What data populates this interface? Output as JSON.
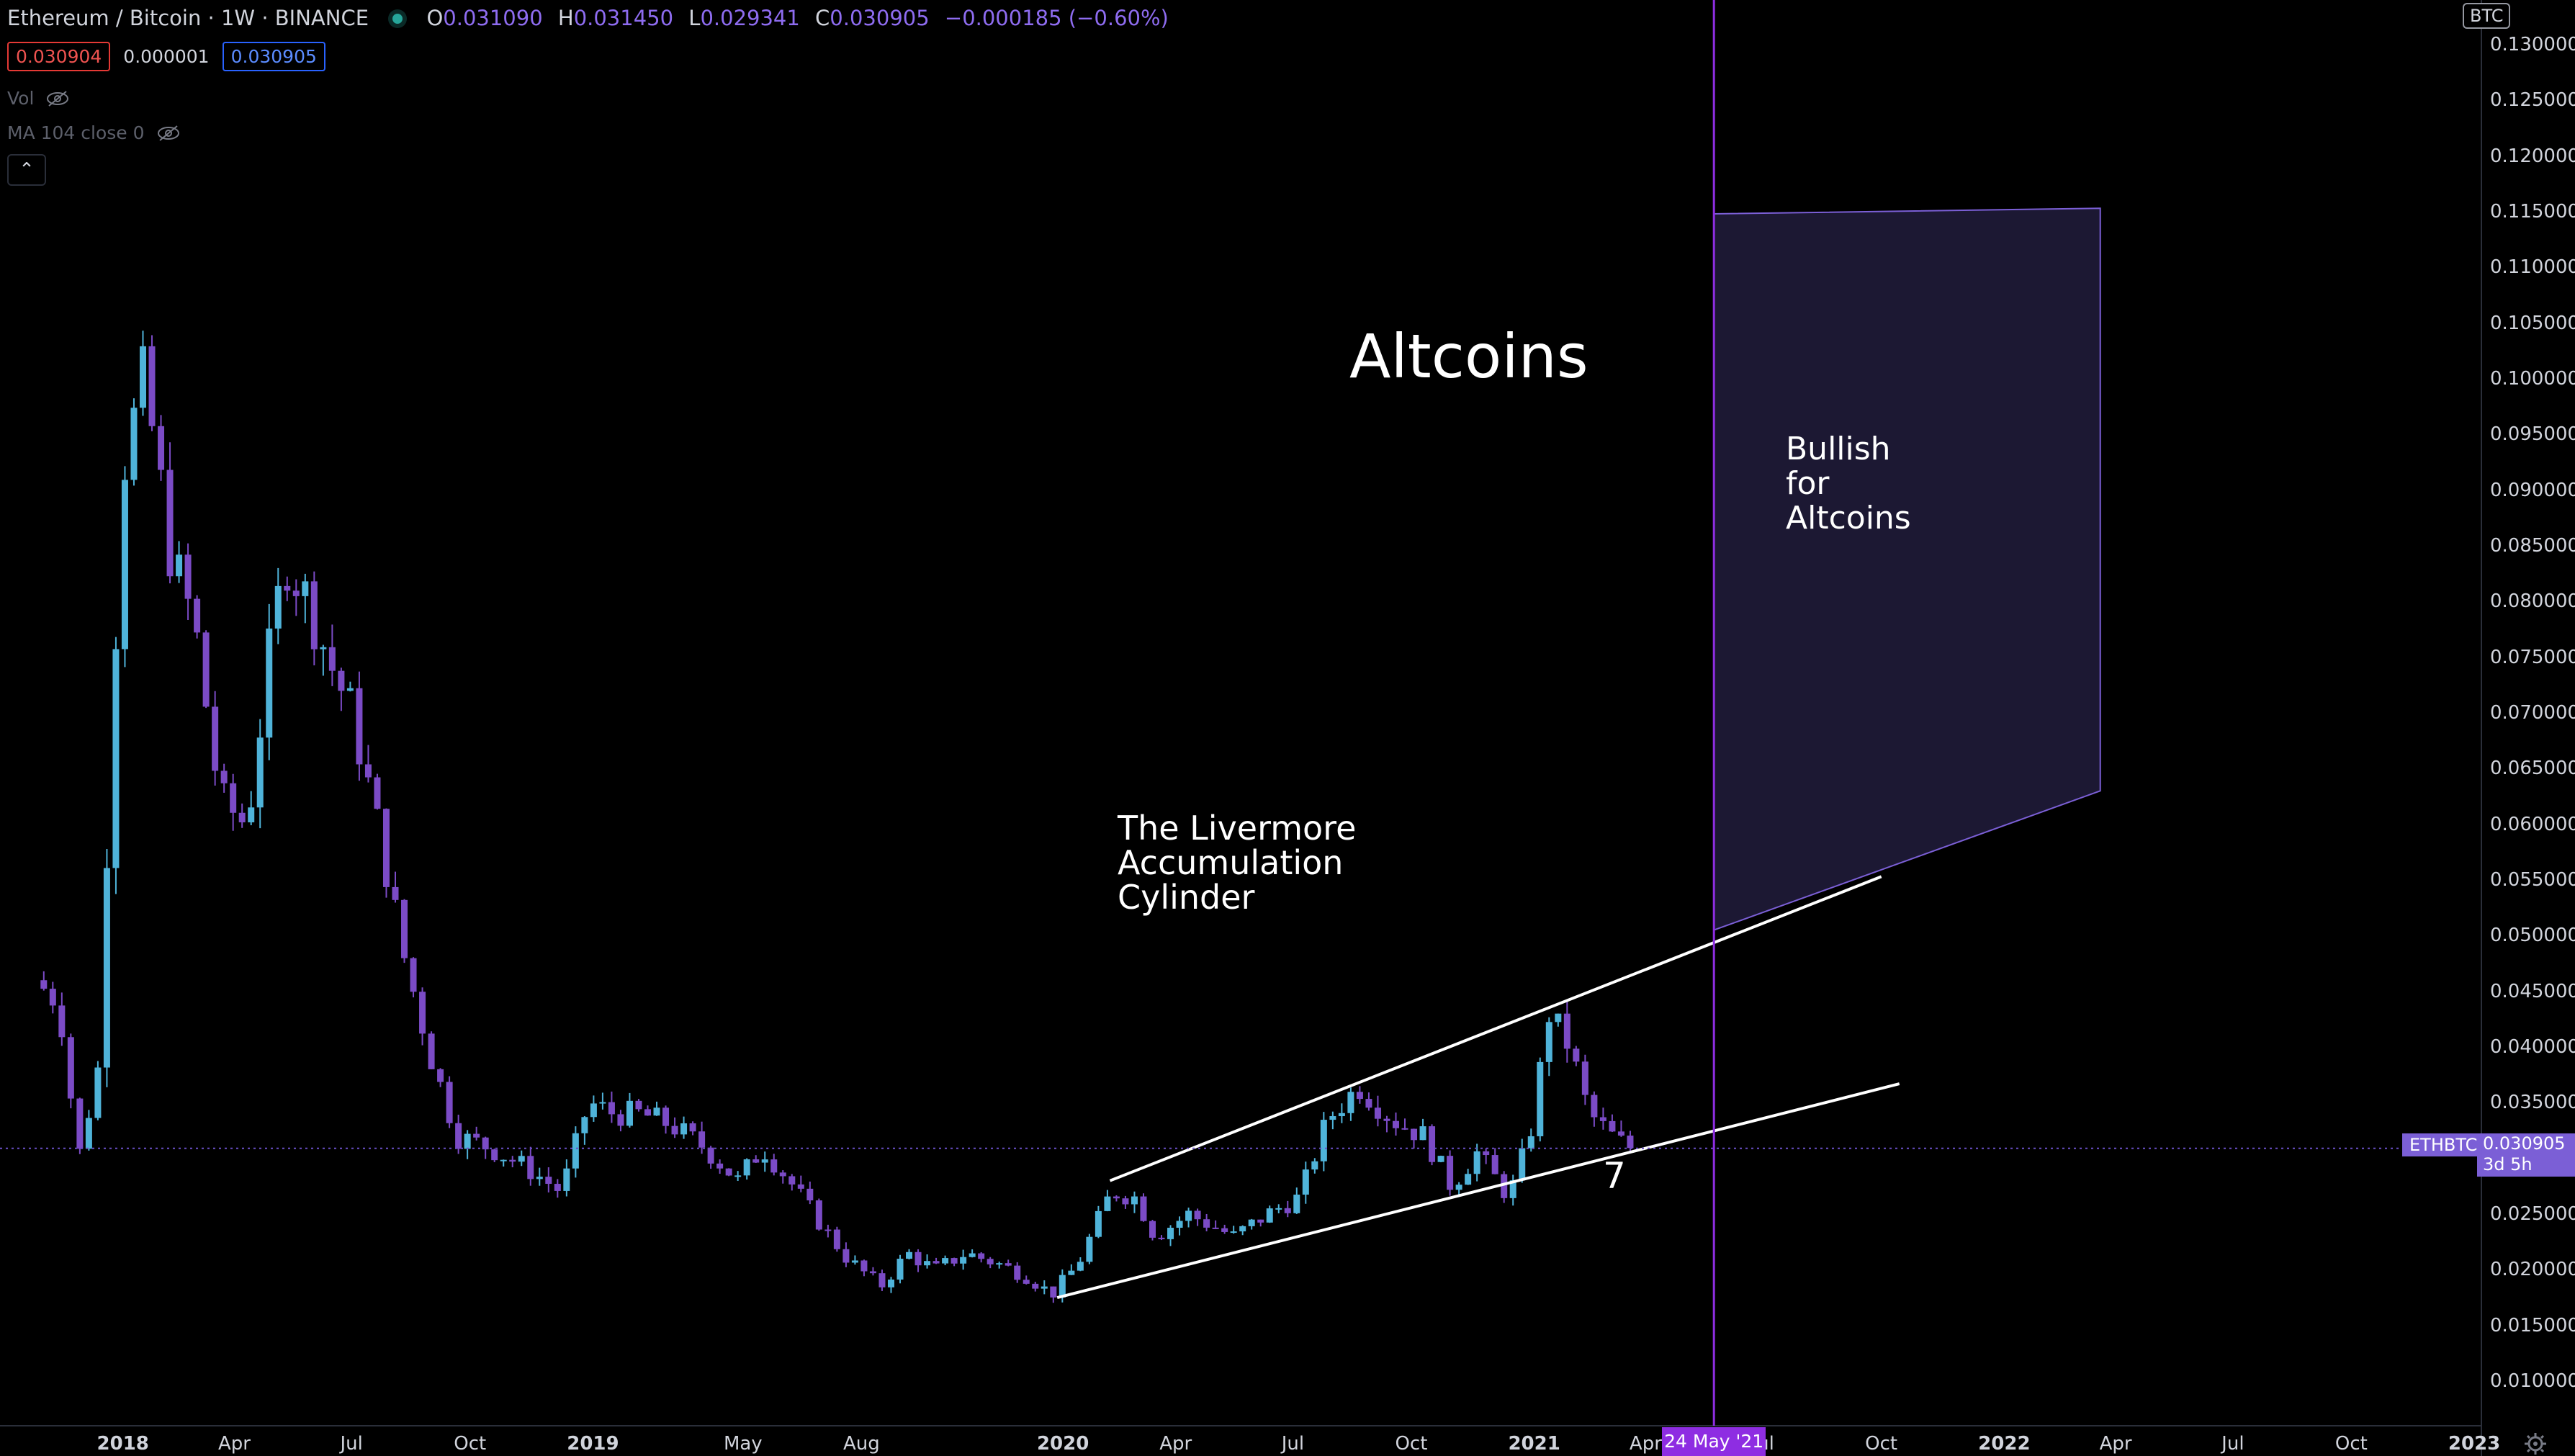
{
  "header": {
    "symbol": "Ethereum / Bitcoin",
    "interval": "1W",
    "exchange": "BINANCE",
    "ohlc": {
      "o_label": "O",
      "o": "0.031090",
      "h_label": "H",
      "h": "0.031450",
      "l_label": "L",
      "l": "0.029341",
      "c_label": "C",
      "c": "0.030905",
      "change": "−0.000185 (−0.60%)"
    },
    "sell_price": "0.030904",
    "spread": "0.000001",
    "buy_price": "0.030905",
    "vol_label": "Vol",
    "ma_label": "MA 104 close 0",
    "collapse_glyph": "⌃"
  },
  "axis": {
    "currency": "BTC",
    "y_ticks": [
      "0.010000",
      "0.015000",
      "0.020000",
      "0.025000",
      "0.030000",
      "0.035000",
      "0.040000",
      "0.045000",
      "0.050000",
      "0.055000",
      "0.060000",
      "0.065000",
      "0.070000",
      "0.075000",
      "0.080000",
      "0.085000",
      "0.090000",
      "0.095000",
      "0.100000",
      "0.105000",
      "0.110000",
      "0.115000",
      "0.120000",
      "0.125000",
      "0.130000"
    ],
    "x_ticks": [
      {
        "label": "2018",
        "d": "2018-01-01",
        "bold": true
      },
      {
        "label": "Apr",
        "d": "2018-04-01"
      },
      {
        "label": "Jul",
        "d": "2018-07-01"
      },
      {
        "label": "Oct",
        "d": "2018-10-01"
      },
      {
        "label": "2019",
        "d": "2019-01-01",
        "bold": true
      },
      {
        "label": "May",
        "d": "2019-05-01"
      },
      {
        "label": "Aug",
        "d": "2019-08-01"
      },
      {
        "label": "2020",
        "d": "2020-01-01",
        "bold": true
      },
      {
        "label": "Apr",
        "d": "2020-04-01"
      },
      {
        "label": "Jul",
        "d": "2020-07-01"
      },
      {
        "label": "Oct",
        "d": "2020-10-01"
      },
      {
        "label": "2021",
        "d": "2021-01-01",
        "bold": true
      },
      {
        "label": "Apr",
        "d": "2021-04-01"
      },
      {
        "label": "Jul",
        "d": "2021-07-01"
      },
      {
        "label": "Oct",
        "d": "2021-10-01"
      },
      {
        "label": "2022",
        "d": "2022-01-01",
        "bold": true
      },
      {
        "label": "Apr",
        "d": "2022-04-01"
      },
      {
        "label": "Jul",
        "d": "2022-07-01"
      },
      {
        "label": "Oct",
        "d": "2022-10-01"
      },
      {
        "label": "2023",
        "d": "2023-01-01",
        "bold": true
      }
    ],
    "last_symbol": "ETHBTC",
    "last_price": "0.030905",
    "countdown": "3d 5h",
    "cursor_date": "24 May '21"
  },
  "annotations": {
    "altcoins": "Altcoins",
    "livermore": "The Livermore\nAccumulation\nCylinder",
    "bullish": "Bullish\nfor\nAltcoins",
    "seven": "7"
  },
  "colors": {
    "up": "#4fb3d9",
    "down": "#7b4bc6",
    "annotation_line": "#ffffff",
    "cursor": "#8e2de2",
    "box_fill": "#1c1833",
    "box_stroke": "#7b5fd6"
  },
  "chart_data": {
    "type": "candlestick",
    "symbol": "ETHBTC",
    "interval": "1W",
    "y_range": [
      0.006,
      0.134
    ],
    "x_range": [
      "2017-10-01",
      "2023-01-10"
    ],
    "anchors": [
      [
        "2017-11-01",
        0.046
      ],
      [
        "2017-11-20",
        0.044
      ],
      [
        "2017-12-05",
        0.03
      ],
      [
        "2017-12-20",
        0.038
      ],
      [
        "2018-01-08",
        0.092
      ],
      [
        "2018-01-25",
        0.1
      ],
      [
        "2018-02-15",
        0.084
      ],
      [
        "2018-03-05",
        0.078
      ],
      [
        "2018-03-25",
        0.062
      ],
      [
        "2018-04-15",
        0.06
      ],
      [
        "2018-05-03",
        0.076
      ],
      [
        "2018-05-15",
        0.084
      ],
      [
        "2018-06-01",
        0.08
      ],
      [
        "2018-06-20",
        0.074
      ],
      [
        "2018-07-05",
        0.07
      ],
      [
        "2018-07-25",
        0.06
      ],
      [
        "2018-08-15",
        0.048
      ],
      [
        "2018-09-05",
        0.039
      ],
      [
        "2018-09-25",
        0.032
      ],
      [
        "2018-10-20",
        0.031
      ],
      [
        "2018-11-20",
        0.029
      ],
      [
        "2018-12-15",
        0.027
      ],
      [
        "2019-01-05",
        0.035
      ],
      [
        "2019-01-25",
        0.034
      ],
      [
        "2019-02-15",
        0.034
      ],
      [
        "2019-03-10",
        0.033
      ],
      [
        "2019-04-05",
        0.031
      ],
      [
        "2019-05-01",
        0.028
      ],
      [
        "2019-05-20",
        0.031
      ],
      [
        "2019-06-10",
        0.028
      ],
      [
        "2019-07-05",
        0.024
      ],
      [
        "2019-07-25",
        0.021
      ],
      [
        "2019-08-20",
        0.0185
      ],
      [
        "2019-09-10",
        0.0215
      ],
      [
        "2019-10-01",
        0.02
      ],
      [
        "2019-10-25",
        0.0215
      ],
      [
        "2019-11-20",
        0.0205
      ],
      [
        "2019-12-10",
        0.0195
      ],
      [
        "2019-12-31",
        0.0178
      ],
      [
        "2020-01-20",
        0.0205
      ],
      [
        "2020-02-15",
        0.027
      ],
      [
        "2020-03-05",
        0.0265
      ],
      [
        "2020-03-20",
        0.023
      ],
      [
        "2020-04-15",
        0.025
      ],
      [
        "2020-05-20",
        0.023
      ],
      [
        "2020-06-15",
        0.025
      ],
      [
        "2020-07-10",
        0.0265
      ],
      [
        "2020-08-01",
        0.0335
      ],
      [
        "2020-08-25",
        0.0365
      ],
      [
        "2020-09-20",
        0.0335
      ],
      [
        "2020-10-15",
        0.032
      ],
      [
        "2020-11-05",
        0.0275
      ],
      [
        "2020-11-25",
        0.0305
      ],
      [
        "2020-12-20",
        0.0265
      ],
      [
        "2021-01-05",
        0.032
      ],
      [
        "2021-01-20",
        0.043
      ],
      [
        "2021-02-05",
        0.04
      ],
      [
        "2021-02-20",
        0.034
      ],
      [
        "2021-03-10",
        0.032
      ],
      [
        "2021-03-22",
        0.031
      ]
    ],
    "annotation_lines": [
      {
        "from": [
          "2019-12-31",
          0.0175
        ],
        "to": [
          "2021-10-15",
          0.0367
        ]
      },
      {
        "from": [
          "2020-02-10",
          0.028
        ],
        "to": [
          "2021-10-01",
          0.0553
        ]
      }
    ],
    "projection_box": {
      "corners": [
        [
          "2021-05-24",
          0.0505
        ],
        [
          "2022-03-20",
          0.063
        ],
        [
          "2022-03-20",
          0.1153
        ],
        [
          "2021-05-24",
          0.1148
        ]
      ]
    },
    "last_price_line": 0.030905,
    "cursor_date": "2021-05-24"
  }
}
